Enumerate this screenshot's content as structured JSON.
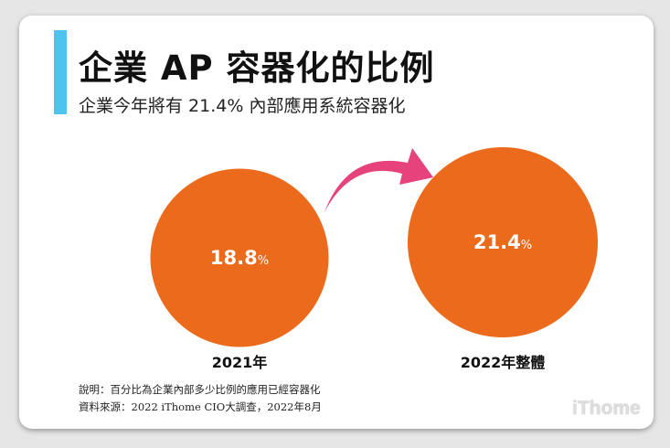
{
  "title": "企業 AP 容器化的比例",
  "subtitle": "企業今年將有 21.4% 內部應用系統容器化",
  "chart_data": {
    "type": "bubble",
    "categories": [
      "2021年",
      "2022年整體"
    ],
    "values": [
      18.8,
      21.4
    ],
    "unit": "%",
    "colors": {
      "circle": "#ec6a1c",
      "arrow": "#e6437c",
      "accent": "#4fc3f0"
    }
  },
  "notes": [
    "說明：百分比為企業內部多少比例的應用已經容器化",
    "資料來源：2022 iThome CIO大調查，2022年8月"
  ],
  "logo": "iThome"
}
